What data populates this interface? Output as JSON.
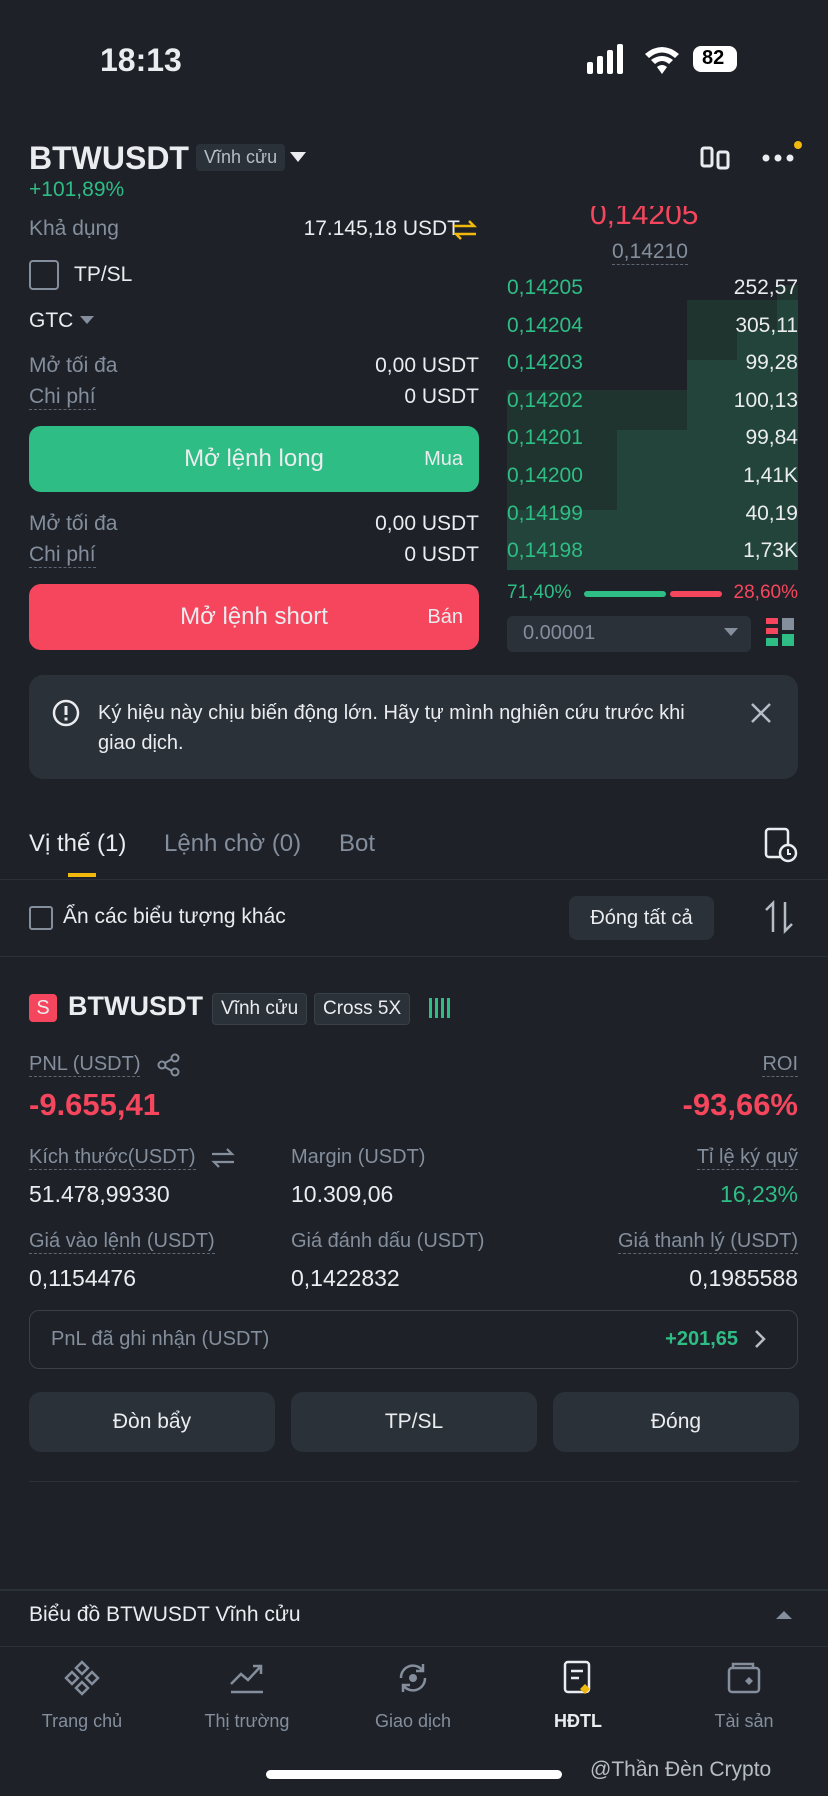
{
  "status_bar": {
    "time": "18:13",
    "battery": "82"
  },
  "header": {
    "symbol": "BTWUSDT",
    "badge": "Vĩnh cửu",
    "change": "+101,89%"
  },
  "order_form": {
    "available_label": "Khả dụng",
    "available_value": "17.145,18 USDT",
    "tpsl": "TP/SL",
    "tif": "GTC",
    "long": {
      "max_label": "Mở tối đa",
      "max_value": "0,00 USDT",
      "cost_label": "Chi phí",
      "cost_value": "0 USDT",
      "button": "Mở lệnh long",
      "button_side": "Mua"
    },
    "short": {
      "max_label": "Mở tối đa",
      "max_value": "0,00 USDT",
      "cost_label": "Chi phí",
      "cost_value": "0 USDT",
      "button": "Mở lệnh short",
      "button_side": "Bán"
    }
  },
  "order_book": {
    "last_price": "0,14205",
    "mark_price": "0,14210",
    "rows": [
      [
        "0,14205",
        "252,57"
      ],
      [
        "0,14204",
        "305,11"
      ],
      [
        "0,14203",
        "99,28"
      ],
      [
        "0,14202",
        "100,13"
      ],
      [
        "0,14201",
        "99,84"
      ],
      [
        "0,14200",
        "1,41K"
      ],
      [
        "0,14199",
        "40,19"
      ],
      [
        "0,14198",
        "1,73K"
      ]
    ],
    "buy_ratio": "71,40%",
    "sell_ratio": "28,60%",
    "tick_size": "0.00001"
  },
  "warning": "Ký hiệu này chịu biến động lớn. Hãy tự mình nghiên cứu trước khi giao dịch.",
  "tabs": [
    "Vị thế (1)",
    "Lệnh chờ (0)",
    "Bot"
  ],
  "filter": {
    "hide_label": "Ẩn các biểu tượng khác",
    "close_all": "Đóng tất cả"
  },
  "position": {
    "side": "S",
    "symbol": "BTWUSDT",
    "type": "Vĩnh cửu",
    "margin_mode": "Cross 5X",
    "pnl_label": "PNL (USDT)",
    "pnl": "-9.655,41",
    "roi_label": "ROI",
    "roi": "-93,66%",
    "fields": [
      {
        "label": "Kích thước(USDT)",
        "value": "51.478,99330"
      },
      {
        "label": "Margin (USDT)",
        "value": "10.309,06"
      },
      {
        "label": "Tỉ lệ ký quỹ",
        "value": "16,23%"
      },
      {
        "label": "Giá vào lệnh (USDT)",
        "value": "0,1154476"
      },
      {
        "label": "Giá đánh dấu (USDT)",
        "value": "0,1422832"
      },
      {
        "label": "Giá thanh lý (USDT)",
        "value": "0,1985588"
      }
    ],
    "realized_label": "PnL đã ghi nhận (USDT)",
    "realized_value": "+201,65",
    "buttons": [
      "Đòn bẩy",
      "TP/SL",
      "Đóng"
    ]
  },
  "chart_bar": "Biểu đồ BTWUSDT Vĩnh cửu",
  "nav": [
    "Trang chủ",
    "Thị trường",
    "Giao dịch",
    "HĐTL",
    "Tài sản"
  ],
  "watermark": "@Thần Đèn Crypto"
}
